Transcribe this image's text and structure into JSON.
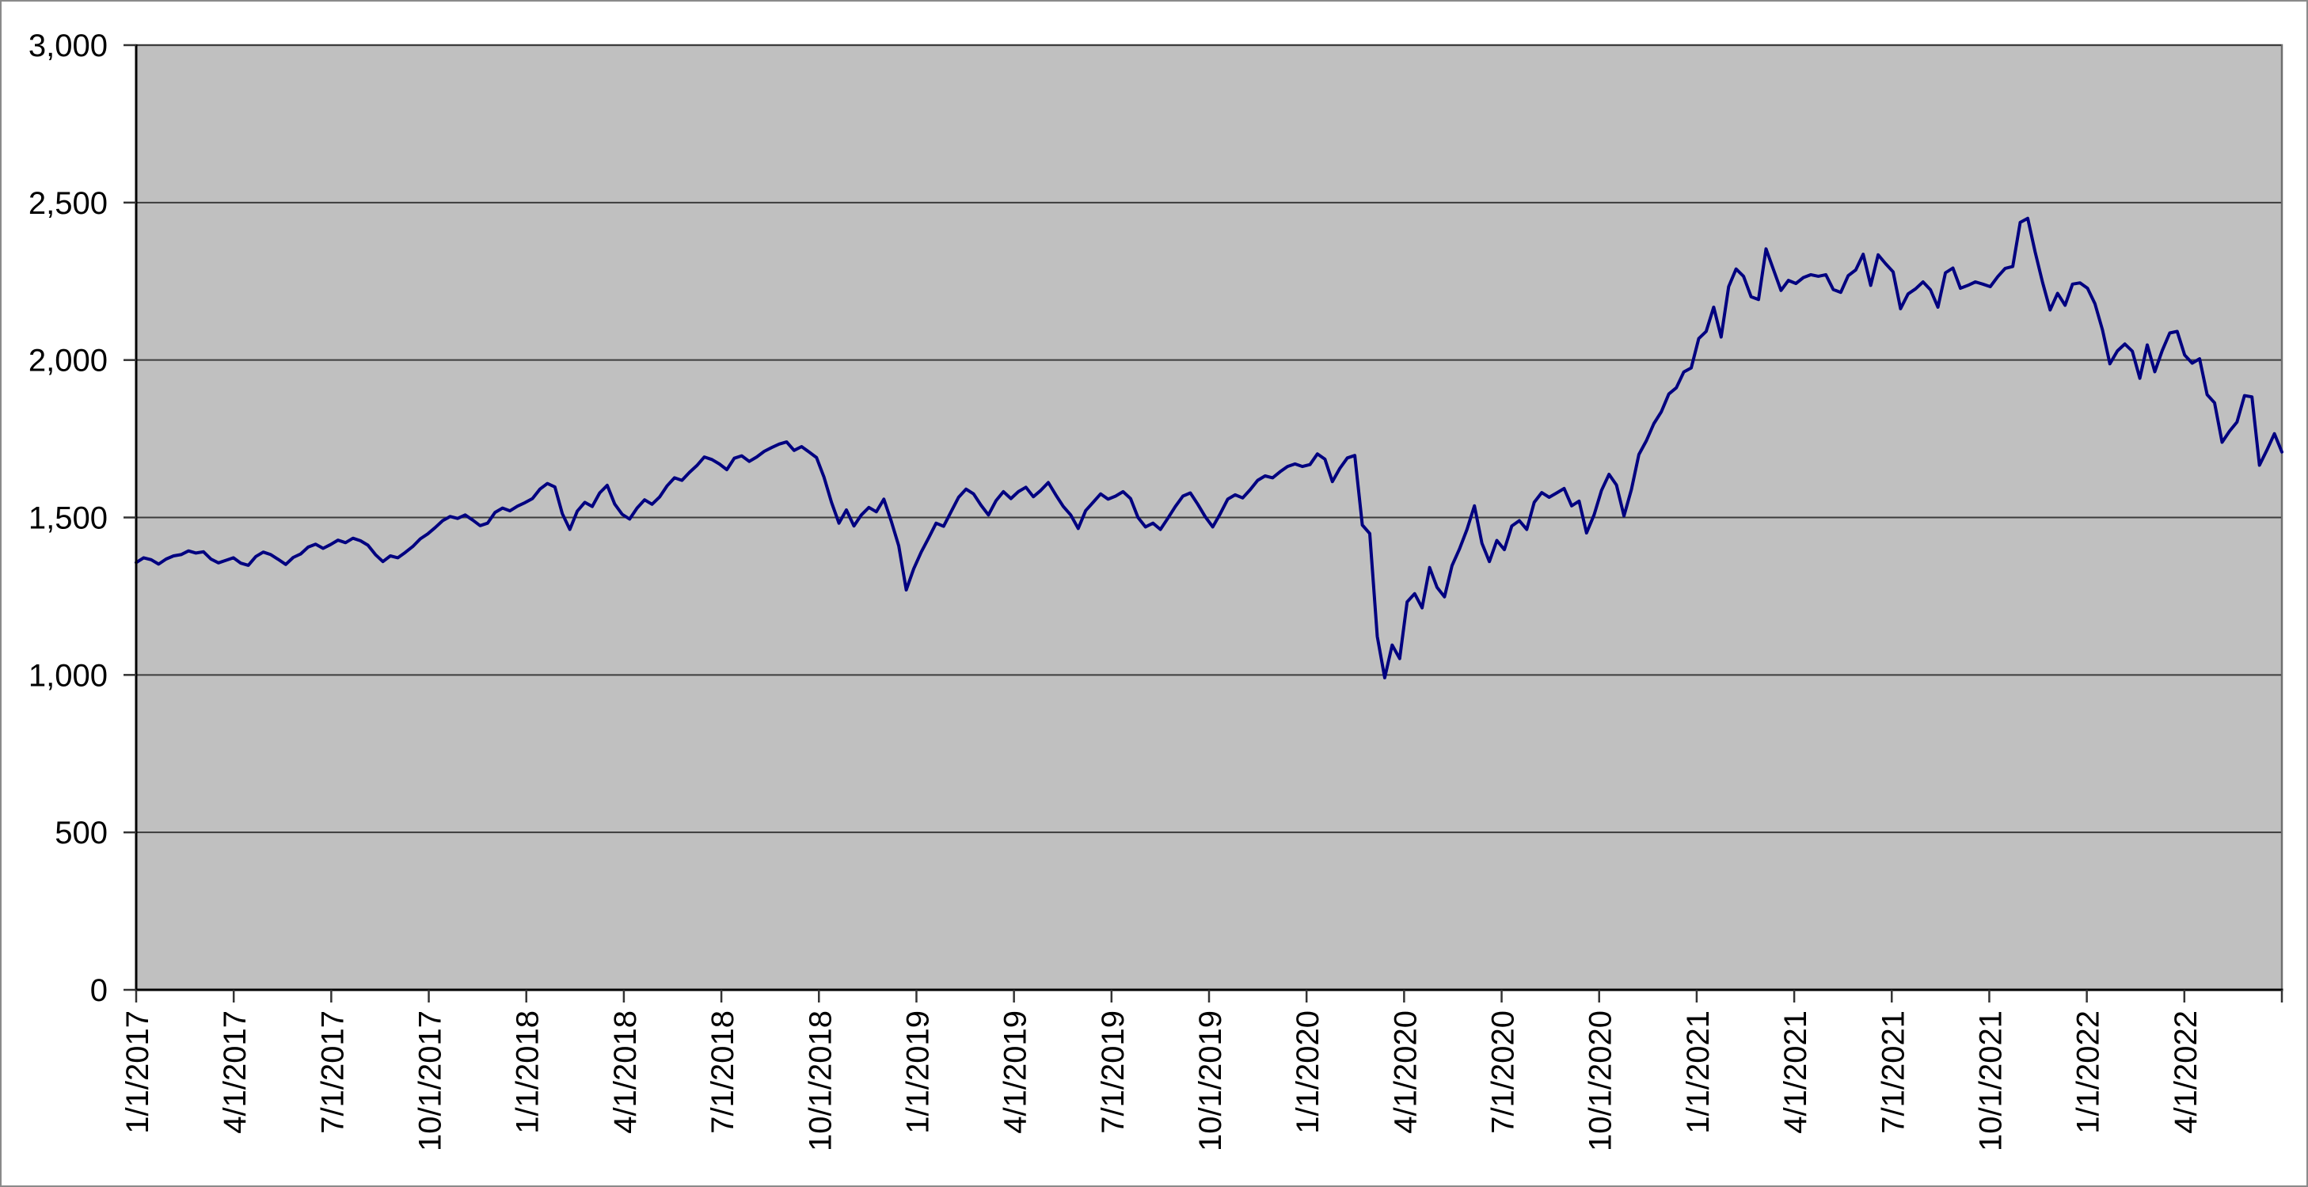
{
  "page": {
    "background": "#FFFFFF",
    "border_color": "#8A8A8A"
  },
  "chart_data": {
    "type": "line",
    "title": "",
    "legend": false,
    "grid": true,
    "plot_bg": "#C0C0C0",
    "gridline_color": "#3C3C3C",
    "axis_color": "#000000",
    "tick_color": "#333333",
    "ylim": [
      0,
      3000
    ],
    "y_tick_values": [
      0,
      500,
      1000,
      1500,
      2000,
      2500,
      3000
    ],
    "y_tick_labels": [
      "0",
      "500",
      "1,000",
      "1,500",
      "2,000",
      "2,500",
      "3,000"
    ],
    "x_tick_labels": [
      "1/1/2017",
      "4/1/2017",
      "7/1/2017",
      "10/1/2017",
      "1/1/2018",
      "4/1/2018",
      "7/1/2018",
      "10/1/2018",
      "1/1/2019",
      "4/1/2019",
      "7/1/2019",
      "10/1/2019",
      "1/1/2020",
      "4/1/2020",
      "7/1/2020",
      "10/1/2020",
      "1/1/2021",
      "4/1/2021",
      "7/1/2021",
      "10/1/2021",
      "1/1/2022",
      "4/1/2022"
    ],
    "x_end_has_unlabeled_tick": true,
    "x_frequency": "weekly",
    "series": [
      {
        "name": "",
        "color": "#000080",
        "stroke_width": 4,
        "values": [
          1357,
          1372,
          1366,
          1352,
          1368,
          1378,
          1382,
          1394,
          1387,
          1391,
          1368,
          1356,
          1364,
          1372,
          1355,
          1348,
          1376,
          1390,
          1382,
          1367,
          1351,
          1373,
          1384,
          1406,
          1415,
          1402,
          1414,
          1428,
          1420,
          1434,
          1426,
          1412,
          1382,
          1360,
          1378,
          1372,
          1389,
          1408,
          1432,
          1448,
          1468,
          1490,
          1503,
          1497,
          1508,
          1492,
          1474,
          1482,
          1516,
          1530,
          1521,
          1536,
          1547,
          1560,
          1590,
          1608,
          1597,
          1512,
          1462,
          1520,
          1548,
          1535,
          1578,
          1602,
          1543,
          1510,
          1495,
          1530,
          1556,
          1542,
          1565,
          1600,
          1626,
          1618,
          1643,
          1665,
          1692,
          1684,
          1670,
          1652,
          1688,
          1696,
          1678,
          1692,
          1710,
          1722,
          1733,
          1740,
          1713,
          1725,
          1708,
          1690,
          1628,
          1548,
          1482,
          1524,
          1473,
          1508,
          1532,
          1518,
          1558,
          1488,
          1410,
          1270,
          1337,
          1390,
          1435,
          1482,
          1472,
          1518,
          1564,
          1590,
          1575,
          1539,
          1508,
          1553,
          1582,
          1560,
          1582,
          1596,
          1566,
          1586,
          1611,
          1572,
          1535,
          1508,
          1465,
          1522,
          1548,
          1575,
          1558,
          1568,
          1582,
          1560,
          1500,
          1470,
          1482,
          1462,
          1498,
          1535,
          1568,
          1578,
          1542,
          1502,
          1470,
          1512,
          1558,
          1572,
          1562,
          1588,
          1618,
          1632,
          1626,
          1645,
          1662,
          1670,
          1662,
          1668,
          1702,
          1685,
          1614,
          1656,
          1689,
          1697,
          1476,
          1449,
          1122,
          991,
          1095,
          1052,
          1232,
          1258,
          1213,
          1341,
          1278,
          1248,
          1347,
          1400,
          1462,
          1537,
          1418,
          1360,
          1427,
          1398,
          1473,
          1490,
          1462,
          1548,
          1579,
          1564,
          1578,
          1592,
          1537,
          1552,
          1451,
          1508,
          1586,
          1637,
          1603,
          1505,
          1589,
          1700,
          1744,
          1798,
          1836,
          1892,
          1912,
          1962,
          1975,
          2068,
          2091,
          2168,
          2073,
          2233,
          2289,
          2266,
          2201,
          2192,
          2353,
          2287,
          2221,
          2253,
          2243,
          2262,
          2271,
          2266,
          2271,
          2224,
          2215,
          2268,
          2286,
          2336,
          2237,
          2334,
          2306,
          2280,
          2163,
          2210,
          2226,
          2248,
          2223,
          2168,
          2277,
          2292,
          2228,
          2237,
          2248,
          2241,
          2233,
          2265,
          2291,
          2297,
          2437,
          2450,
          2343,
          2246,
          2159,
          2212,
          2174,
          2241,
          2245,
          2228,
          2179,
          2096,
          1988,
          2029,
          2051,
          2028,
          1942,
          2048,
          1963,
          2030,
          2086,
          2091,
          2016,
          1990,
          2004,
          1890,
          1864,
          1739,
          1774,
          1803,
          1887,
          1883,
          1666,
          1714,
          1766,
          1708
        ]
      }
    ]
  }
}
